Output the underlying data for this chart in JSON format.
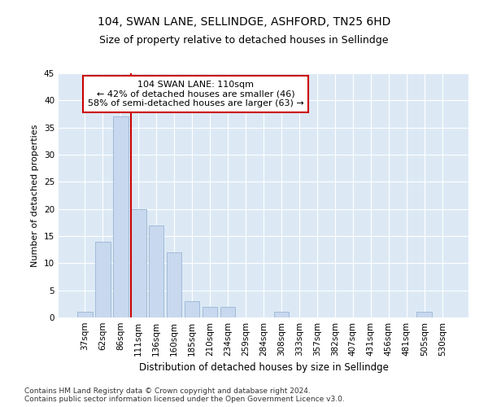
{
  "title": "104, SWAN LANE, SELLINDGE, ASHFORD, TN25 6HD",
  "subtitle": "Size of property relative to detached houses in Sellindge",
  "xlabel": "Distribution of detached houses by size in Sellindge",
  "ylabel": "Number of detached properties",
  "categories": [
    "37sqm",
    "62sqm",
    "86sqm",
    "111sqm",
    "136sqm",
    "160sqm",
    "185sqm",
    "210sqm",
    "234sqm",
    "259sqm",
    "284sqm",
    "308sqm",
    "333sqm",
    "357sqm",
    "382sqm",
    "407sqm",
    "431sqm",
    "456sqm",
    "481sqm",
    "505sqm",
    "530sqm"
  ],
  "values": [
    1,
    14,
    37,
    20,
    17,
    12,
    3,
    2,
    2,
    0,
    0,
    1,
    0,
    0,
    0,
    0,
    0,
    0,
    0,
    1,
    0
  ],
  "bar_color": "#c8d8ee",
  "bar_edge_color": "#9ab5d5",
  "vline_x": 2.575,
  "vline_color": "#cc0000",
  "ylim": [
    0,
    45
  ],
  "yticks": [
    0,
    5,
    10,
    15,
    20,
    25,
    30,
    35,
    40,
    45
  ],
  "annotation_title": "104 SWAN LANE: 110sqm",
  "annotation_line1": "← 42% of detached houses are smaller (46)",
  "annotation_line2": "58% of semi-detached houses are larger (63) →",
  "annotation_box_color": "#ffffff",
  "annotation_box_edge": "#cc0000",
  "fig_background": "#ffffff",
  "plot_background": "#dce9f5",
  "grid_color": "#ffffff",
  "footnote": "Contains HM Land Registry data © Crown copyright and database right 2024.\nContains public sector information licensed under the Open Government Licence v3.0.",
  "title_fontsize": 10,
  "subtitle_fontsize": 9,
  "xlabel_fontsize": 8.5,
  "ylabel_fontsize": 8,
  "tick_fontsize": 7.5,
  "annot_fontsize": 8,
  "footnote_fontsize": 6.5
}
